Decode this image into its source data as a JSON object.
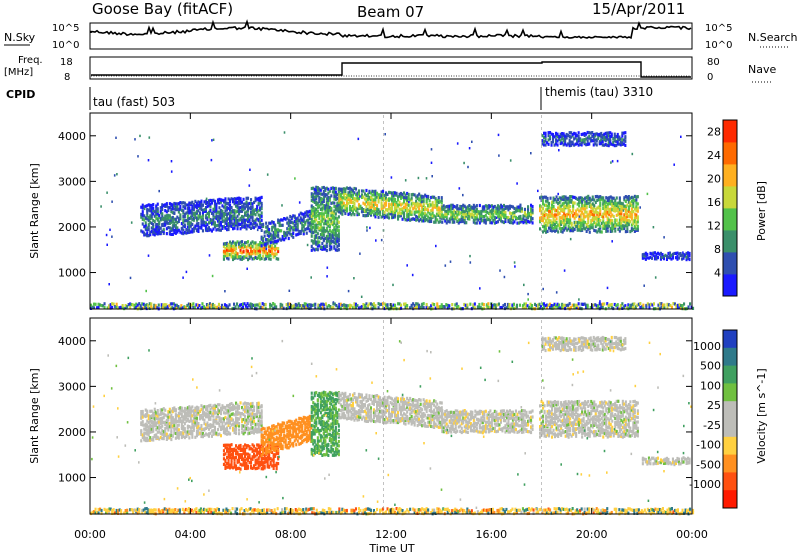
{
  "header": {
    "station": "Goose Bay (fitACF)",
    "beam": "Beam 07",
    "date": "15/Apr/2011"
  },
  "top_panel": {
    "left_label": "N.Sky",
    "left_ticks": [
      "10^5",
      "10^0"
    ],
    "right_label": "N.Search",
    "right_ticks": [
      "10^5",
      "10^0"
    ]
  },
  "freq_panel": {
    "left_label_1": "Freq.",
    "left_label_2": "[MHz]",
    "left_ticks": [
      "18",
      "8"
    ],
    "right_label": "Nave",
    "right_ticks": [
      "80",
      "0"
    ]
  },
  "cpid": {
    "label": "CPID",
    "modes": [
      {
        "text": "tau (fast) 503",
        "start_hour": 0
      },
      {
        "text": "themis (tau) 3310",
        "start_hour": 18
      }
    ]
  },
  "colors": {
    "power": [
      "#1a1aff",
      "#2f4fb0",
      "#3a8f6a",
      "#52c24a",
      "#c8d83a",
      "#ffb020",
      "#ff6a00",
      "#ff2a00"
    ],
    "velocity_pos": [
      "#2040c0",
      "#2f7a8a",
      "#40a060",
      "#70c040"
    ],
    "velocity_neg": [
      "#ffd040",
      "#ff9020",
      "#ff5010",
      "#ff1a00"
    ],
    "ground": "#bdbdb8"
  },
  "chart_data": [
    {
      "type": "heatmap",
      "ylabel": "Slant Range [km]",
      "y_ticks": [
        1000,
        2000,
        3000,
        4000
      ],
      "ylim": [
        200,
        4500
      ],
      "xlim": [
        0,
        24
      ],
      "colorbar": {
        "label": "Power [dB]",
        "ticks": [
          "4",
          "8",
          "12",
          "16",
          "20",
          "24",
          "28"
        ],
        "range": [
          0,
          30
        ]
      },
      "regions": [
        {
          "x0": 2.0,
          "x1": 6.8,
          "r0": 1800,
          "r1": 2500,
          "slope": 200,
          "value": 6
        },
        {
          "x0": 5.3,
          "x1": 7.5,
          "r0": 1300,
          "r1": 1700,
          "slope": 0,
          "value": 18
        },
        {
          "x0": 6.8,
          "x1": 8.8,
          "r0": 1600,
          "r1": 2100,
          "slope": 300,
          "value": 7
        },
        {
          "x0": 8.8,
          "x1": 9.9,
          "r0": 1500,
          "r1": 2900,
          "slope": 0,
          "value": 10
        },
        {
          "x0": 9.9,
          "x1": 14.0,
          "r0": 2300,
          "r1": 2900,
          "slope": -200,
          "value": 14
        },
        {
          "x0": 14.0,
          "x1": 17.6,
          "r0": 2100,
          "r1": 2500,
          "slope": 0,
          "value": 11
        },
        {
          "x0": 17.9,
          "x1": 21.8,
          "r0": 1900,
          "r1": 2700,
          "slope": 0,
          "value": 15
        },
        {
          "x0": 18.0,
          "x1": 21.3,
          "r0": 3800,
          "r1": 4100,
          "slope": 0,
          "value": 6
        },
        {
          "x0": 22.0,
          "x1": 23.9,
          "r0": 1300,
          "r1": 1450,
          "slope": 0,
          "value": 5
        },
        {
          "x0": 0.0,
          "x1": 24.0,
          "r0": 220,
          "r1": 350,
          "slope": 0,
          "value": 8
        }
      ]
    },
    {
      "type": "heatmap",
      "ylabel": "Slant Range [km]",
      "y_ticks": [
        1000,
        2000,
        3000,
        4000
      ],
      "ylim": [
        200,
        4500
      ],
      "xlim": [
        0,
        24
      ],
      "xlabel": "Time UT",
      "x_ticks": [
        "00:00",
        "04:00",
        "08:00",
        "12:00",
        "16:00",
        "20:00",
        "00:00"
      ],
      "colorbar": {
        "label": "Velocity [m s^-1]",
        "ticks": [
          "1000",
          "500",
          "100",
          "25",
          "-25",
          "-100",
          "-500",
          "-1000"
        ],
        "range": [
          -1000,
          1000
        ]
      },
      "regions": [
        {
          "x0": 2.0,
          "x1": 6.8,
          "r0": 1800,
          "r1": 2500,
          "slope": 200,
          "value": 0
        },
        {
          "x0": 5.3,
          "x1": 7.5,
          "r0": 1200,
          "r1": 1750,
          "slope": 0,
          "value": -400
        },
        {
          "x0": 6.8,
          "x1": 8.8,
          "r0": 1500,
          "r1": 2100,
          "slope": 300,
          "value": -150
        },
        {
          "x0": 8.8,
          "x1": 9.9,
          "r0": 1500,
          "r1": 2900,
          "slope": 0,
          "value": 60
        },
        {
          "x0": 9.9,
          "x1": 14.0,
          "r0": 2300,
          "r1": 2900,
          "slope": -200,
          "value": 0
        },
        {
          "x0": 14.0,
          "x1": 17.6,
          "r0": 2000,
          "r1": 2500,
          "slope": 0,
          "value": 0
        },
        {
          "x0": 17.9,
          "x1": 21.8,
          "r0": 1900,
          "r1": 2700,
          "slope": 0,
          "value": 0
        },
        {
          "x0": 18.0,
          "x1": 21.3,
          "r0": 3800,
          "r1": 4100,
          "slope": 0,
          "value": 0
        },
        {
          "x0": 22.0,
          "x1": 23.9,
          "r0": 1300,
          "r1": 1450,
          "slope": 0,
          "value": 0
        },
        {
          "x0": 0.0,
          "x1": 24.0,
          "r0": 220,
          "r1": 350,
          "slope": 0,
          "value": -60
        }
      ]
    }
  ]
}
